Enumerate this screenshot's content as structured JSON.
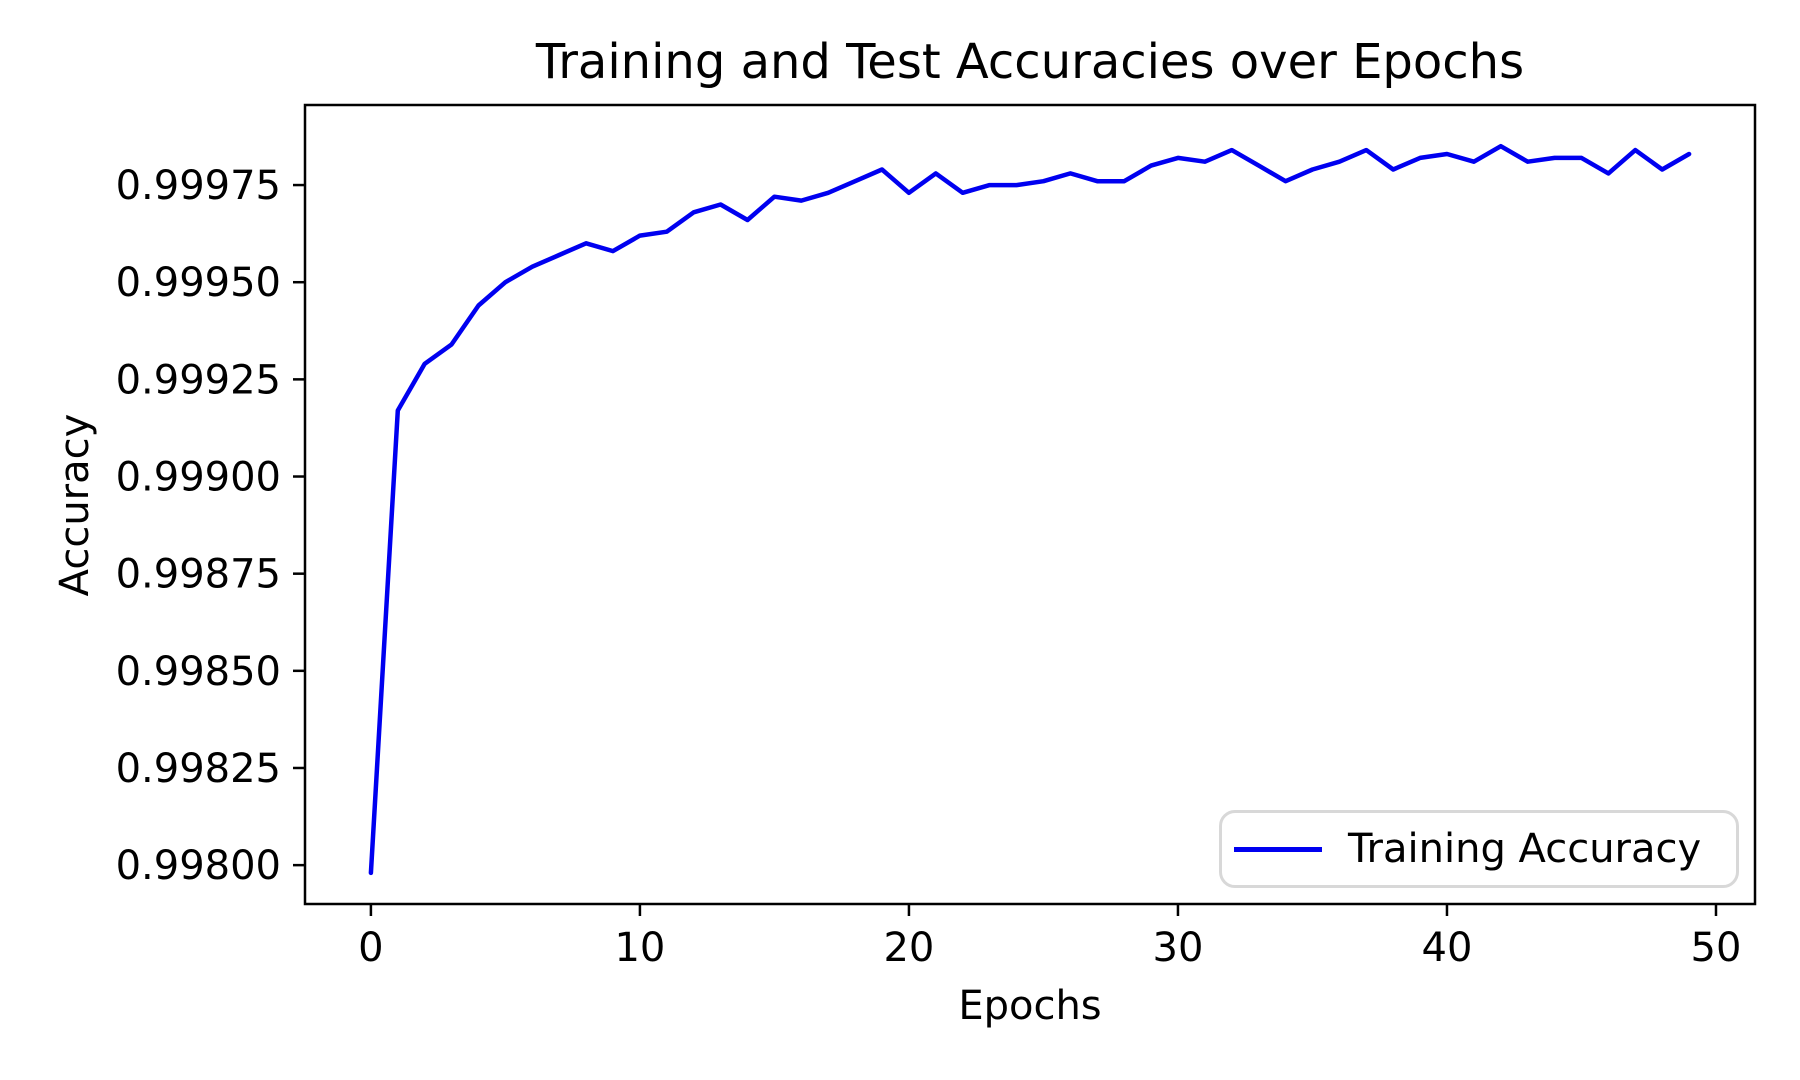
{
  "figure": {
    "title": "Training and Test Accuracies over Epochs",
    "xlabel": "Epochs",
    "ylabel": "Accuracy"
  },
  "legend": {
    "position": "lower right",
    "entries": [
      {
        "label": "Training Accuracy",
        "color": "#0000f0",
        "marker": "line"
      }
    ]
  },
  "colors": {
    "line": "#0000f0",
    "axis": "#000000",
    "text": "#000000",
    "legend_border": "#d8d8d8",
    "background": "#ffffff"
  },
  "chart_data": {
    "type": "line",
    "title": "Training and Test Accuracies over Epochs",
    "xlabel": "Epochs",
    "ylabel": "Accuracy",
    "grid": false,
    "legend_position": "lower right",
    "xlim": [
      -2.45,
      51.45
    ],
    "ylim": [
      0.9979,
      0.999956
    ],
    "xticks": [
      0,
      10,
      20,
      30,
      40,
      50
    ],
    "xtick_labels": [
      "0",
      "10",
      "20",
      "30",
      "40",
      "50"
    ],
    "yticks": [
      0.998,
      0.99825,
      0.9985,
      0.99875,
      0.999,
      0.99925,
      0.9995,
      0.99975
    ],
    "ytick_labels": [
      "0.99800",
      "0.99825",
      "0.99850",
      "0.99875",
      "0.99900",
      "0.99925",
      "0.99950",
      "0.99975"
    ],
    "x": [
      0,
      1,
      2,
      3,
      4,
      5,
      6,
      7,
      8,
      9,
      10,
      11,
      12,
      13,
      14,
      15,
      16,
      17,
      18,
      19,
      20,
      21,
      22,
      23,
      24,
      25,
      26,
      27,
      28,
      29,
      30,
      31,
      32,
      33,
      34,
      35,
      36,
      37,
      38,
      39,
      40,
      41,
      42,
      43,
      44,
      45,
      46,
      47,
      48,
      49
    ],
    "series": [
      {
        "name": "Training Accuracy",
        "color": "#0000f0",
        "values": [
          0.99798,
          0.99917,
          0.99929,
          0.99934,
          0.99944,
          0.9995,
          0.99954,
          0.99957,
          0.9996,
          0.99958,
          0.99962,
          0.99963,
          0.99968,
          0.9997,
          0.99966,
          0.99972,
          0.99971,
          0.99973,
          0.99976,
          0.99979,
          0.99973,
          0.99978,
          0.99973,
          0.99975,
          0.99975,
          0.99976,
          0.99978,
          0.99976,
          0.99976,
          0.9998,
          0.99982,
          0.99981,
          0.99984,
          0.9998,
          0.99976,
          0.99979,
          0.99981,
          0.99984,
          0.99979,
          0.99982,
          0.99983,
          0.99981,
          0.99985,
          0.99981,
          0.99982,
          0.99982,
          0.99978,
          0.99984,
          0.99979,
          0.99983
        ]
      }
    ]
  }
}
